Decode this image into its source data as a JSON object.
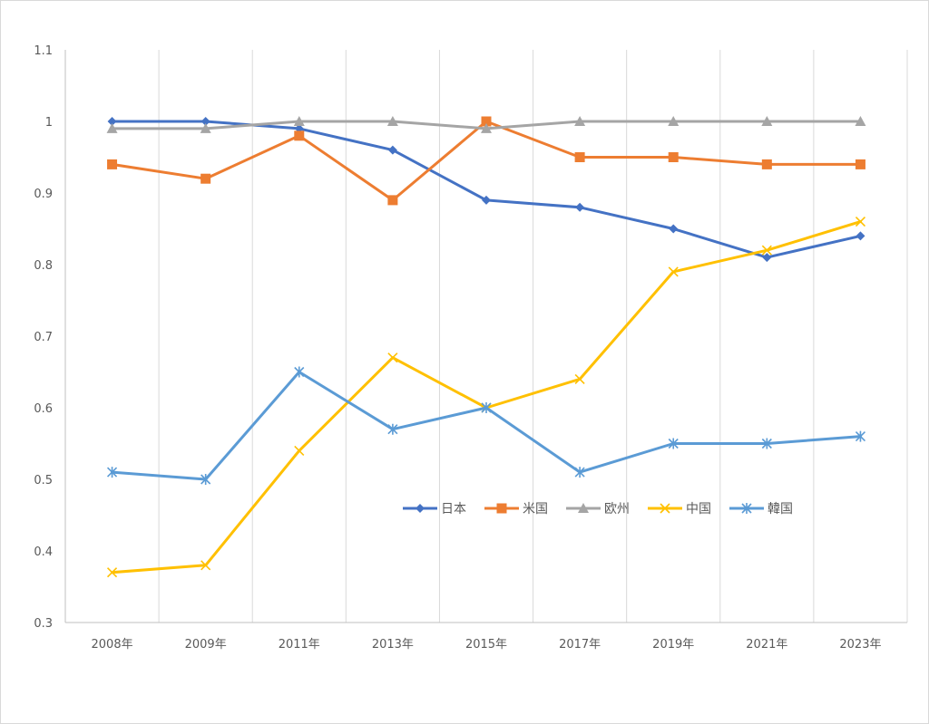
{
  "chart_data": {
    "type": "line",
    "title": "",
    "xlabel": "",
    "ylabel": "",
    "categories": [
      "2008年",
      "2009年",
      "2011年",
      "2013年",
      "2015年",
      "2017年",
      "2019年",
      "2021年",
      "2023年"
    ],
    "ylim": [
      0.3,
      1.1
    ],
    "yticks": [
      "0.3",
      "0.4",
      "0.5",
      "0.6",
      "0.7",
      "0.8",
      "0.9",
      "1",
      "1.1"
    ],
    "grid": "vertical",
    "legend_position": "center-right",
    "series": [
      {
        "name": "日本",
        "color": "#4472c4",
        "marker": "diamond",
        "values": [
          1.0,
          1.0,
          0.99,
          0.96,
          0.89,
          0.88,
          0.85,
          0.81,
          0.84
        ]
      },
      {
        "name": "米国",
        "color": "#ed7d31",
        "marker": "square",
        "values": [
          0.94,
          0.92,
          0.98,
          0.89,
          1.0,
          0.95,
          0.95,
          0.94,
          0.94
        ]
      },
      {
        "name": "欧州",
        "color": "#a5a5a5",
        "marker": "triangle",
        "values": [
          0.99,
          0.99,
          1.0,
          1.0,
          0.99,
          1.0,
          1.0,
          1.0,
          1.0
        ]
      },
      {
        "name": "中国",
        "color": "#ffc000",
        "marker": "x",
        "values": [
          0.37,
          0.38,
          0.54,
          0.67,
          0.6,
          0.64,
          0.79,
          0.82,
          0.86
        ]
      },
      {
        "name": "韓国",
        "color": "#5b9bd5",
        "marker": "star",
        "values": [
          0.51,
          0.5,
          0.65,
          0.57,
          0.6,
          0.51,
          0.55,
          0.55,
          0.56
        ]
      }
    ]
  }
}
